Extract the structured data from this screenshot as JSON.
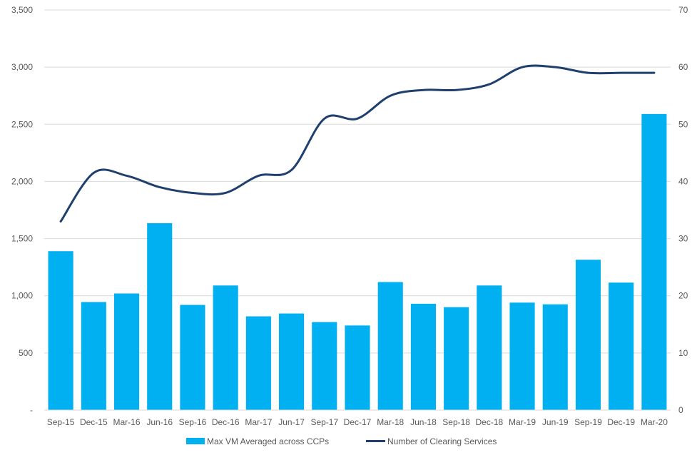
{
  "chart_data": {
    "type": "bar",
    "categories": [
      "Sep-15",
      "Dec-15",
      "Mar-16",
      "Jun-16",
      "Sep-16",
      "Dec-16",
      "Mar-17",
      "Jun-17",
      "Sep-17",
      "Dec-17",
      "Mar-18",
      "Jun-18",
      "Sep-18",
      "Dec-18",
      "Mar-19",
      "Jun-19",
      "Sep-19",
      "Dec-19",
      "Mar-20"
    ],
    "series": [
      {
        "name": "Max VM Averaged across CCPs",
        "type": "bar",
        "axis": "left",
        "color": "#00b0f0",
        "values": [
          1390,
          945,
          1020,
          1635,
          920,
          1090,
          820,
          845,
          770,
          740,
          1120,
          930,
          900,
          1090,
          940,
          925,
          1315,
          1115,
          2590
        ]
      },
      {
        "name": "Number of Clearing Services",
        "type": "line",
        "axis": "right",
        "color": "#1f3f6e",
        "values": [
          33,
          41.5,
          41,
          39,
          38,
          38,
          41,
          42,
          51,
          51,
          55,
          56,
          56,
          57,
          60,
          60,
          59,
          59,
          59
        ]
      }
    ],
    "y_left": {
      "range": [
        0,
        3500
      ],
      "tick_labels": [
        "-",
        "500",
        "1,000",
        "1,500",
        "2,000",
        "2,500",
        "3,000",
        "3,500"
      ]
    },
    "y_right": {
      "range": [
        0,
        70
      ],
      "tick_labels": [
        "0",
        "10",
        "20",
        "30",
        "40",
        "50",
        "60",
        "70"
      ]
    },
    "grid": true,
    "legend": "bottom"
  }
}
